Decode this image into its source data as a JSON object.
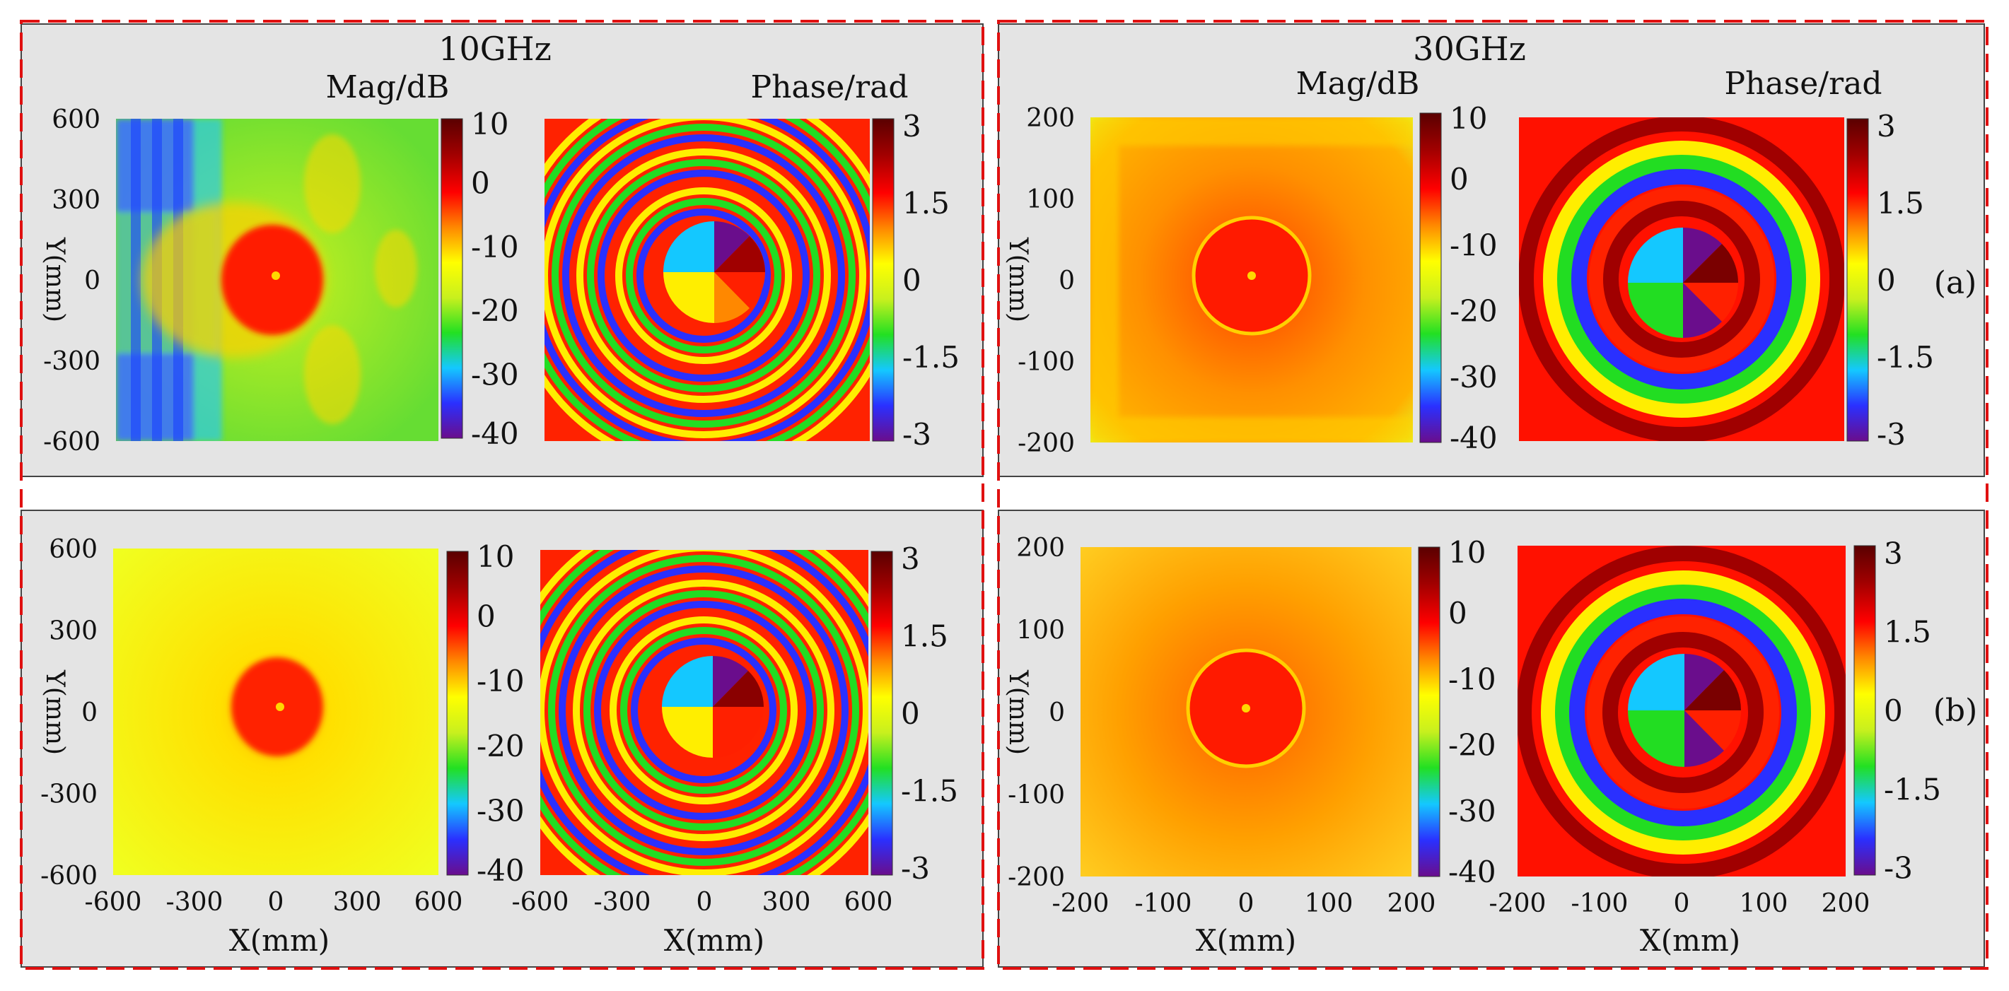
{
  "figure": {
    "freq_labels": [
      "10GHz",
      "30GHz"
    ],
    "row_labels": [
      "(a)",
      "(b)"
    ],
    "mag_title": "Mag/dB",
    "phase_title": "Phase/rad"
  },
  "colors": {
    "panel_bg": "#e4e4e4",
    "frame_red": "#e01010",
    "colormap_stops": [
      "#6a0d8c",
      "#2a30ff",
      "#14c8ff",
      "#22e022",
      "#c8f01e",
      "#ffff00",
      "#ff8800",
      "#ff0000",
      "#a00000",
      "#5a0000"
    ]
  },
  "chart_data": [
    {
      "id": "a-10GHz-mag",
      "row": "(a)",
      "freq": "10GHz",
      "type": "heatmap",
      "quantity": "magnitude",
      "title": "Mag/dB",
      "xlabel": "",
      "ylabel": "Y(mm)",
      "xlim": [
        -600,
        600
      ],
      "ylim": [
        -600,
        600
      ],
      "yticks": [
        "600",
        "300",
        "0",
        "-300",
        "-600"
      ],
      "colorbar": {
        "range": [
          -40,
          10
        ],
        "ticks": [
          "10",
          "0",
          "-10",
          "-20",
          "-30",
          "-40"
        ]
      },
      "description": "Focused spot of about 0 to 5 dB near centre; standing-wave interference stripes of -30 to -35 dB along the left edge; -15 to -20 dB elsewhere"
    },
    {
      "id": "a-10GHz-phase",
      "row": "(a)",
      "freq": "10GHz",
      "type": "heatmap",
      "quantity": "phase",
      "title": "Phase/rad",
      "xlabel": "",
      "ylabel": "",
      "xlim": [
        -600,
        600
      ],
      "ylim": [
        -600,
        600
      ],
      "colorbar": {
        "range": [
          -3.14,
          3.14
        ],
        "ticks": [
          "3",
          "1.5",
          "0",
          "-1.5",
          "-3"
        ]
      },
      "description": "Single-arm spiral phase (vortex, topological charge 1), dense wrapped rings"
    },
    {
      "id": "a-30GHz-mag",
      "row": "(a)",
      "freq": "30GHz",
      "type": "heatmap",
      "quantity": "magnitude",
      "title": "Mag/dB",
      "xlabel": "",
      "ylabel": "Y(mm)",
      "xlim": [
        -200,
        200
      ],
      "ylim": [
        -200,
        200
      ],
      "yticks": [
        "200",
        "100",
        "0",
        "-100",
        "-200"
      ],
      "colorbar": {
        "range": [
          -40,
          10
        ],
        "ticks": [
          "10",
          "0",
          "-10",
          "-20",
          "-30",
          "-40"
        ]
      },
      "description": "Focused ring around centre about 0 dB with a small null at centre; background -10 to -15 dB"
    },
    {
      "id": "a-30GHz-phase",
      "row": "(a)",
      "freq": "30GHz",
      "type": "heatmap",
      "quantity": "phase",
      "title": "Phase/rad",
      "xlabel": "",
      "ylabel": "",
      "xlim": [
        -200,
        200
      ],
      "ylim": [
        -200,
        200
      ],
      "colorbar": {
        "range": [
          -3.14,
          3.14
        ],
        "ticks": [
          "3",
          "1.5",
          "0",
          "-1.5",
          "-3"
        ]
      },
      "description": "Vortex phase with about three wrapped rings"
    },
    {
      "id": "b-10GHz-mag",
      "row": "(b)",
      "freq": "10GHz",
      "type": "heatmap",
      "quantity": "magnitude",
      "title": "",
      "xlabel": "X(mm)",
      "ylabel": "Y(mm)",
      "xlim": [
        -600,
        600
      ],
      "ylim": [
        -600,
        600
      ],
      "xticks": [
        "-600",
        "-300",
        "0",
        "300",
        "600"
      ],
      "yticks": [
        "600",
        "300",
        "0",
        "-300",
        "-600"
      ],
      "colorbar": {
        "range": [
          -40,
          10
        ],
        "ticks": [
          "10",
          "0",
          "-10",
          "-20",
          "-30",
          "-40"
        ]
      },
      "description": "Smooth focal spot about 0 dB at centre; uniform -13 dB background"
    },
    {
      "id": "b-10GHz-phase",
      "row": "(b)",
      "freq": "10GHz",
      "type": "heatmap",
      "quantity": "phase",
      "title": "",
      "xlabel": "X(mm)",
      "ylabel": "",
      "xlim": [
        -600,
        600
      ],
      "ylim": [
        -600,
        600
      ],
      "xticks": [
        "-600",
        "-300",
        "0",
        "300",
        "600"
      ],
      "colorbar": {
        "range": [
          -3.14,
          3.14
        ],
        "ticks": [
          "3",
          "1.5",
          "0",
          "-1.5",
          "-3"
        ]
      },
      "description": "Vortex phase, dense spiral rings"
    },
    {
      "id": "b-30GHz-mag",
      "row": "(b)",
      "freq": "30GHz",
      "type": "heatmap",
      "quantity": "magnitude",
      "title": "",
      "xlabel": "X(mm)",
      "ylabel": "Y(mm)",
      "xlim": [
        -200,
        200
      ],
      "ylim": [
        -200,
        200
      ],
      "xticks": [
        "-200",
        "-100",
        "0",
        "100",
        "200"
      ],
      "yticks": [
        "200",
        "100",
        "0",
        "-100",
        "-200"
      ],
      "colorbar": {
        "range": [
          -40,
          10
        ],
        "ticks": [
          "10",
          "0",
          "-10",
          "-20",
          "-30",
          "-40"
        ]
      },
      "description": "Focused ring about 0 dB around a central null; -10 to -13 dB background"
    },
    {
      "id": "b-30GHz-phase",
      "row": "(b)",
      "freq": "30GHz",
      "type": "heatmap",
      "quantity": "phase",
      "title": "",
      "xlabel": "X(mm)",
      "ylabel": "",
      "xlim": [
        -200,
        200
      ],
      "ylim": [
        -200,
        200
      ],
      "xticks": [
        "-200",
        "-100",
        "0",
        "100",
        "200"
      ],
      "colorbar": {
        "range": [
          -3.14,
          3.14
        ],
        "ticks": [
          "3",
          "1.5",
          "0",
          "-1.5",
          "-3"
        ]
      },
      "description": "Vortex phase with about three wrapped rings"
    }
  ]
}
